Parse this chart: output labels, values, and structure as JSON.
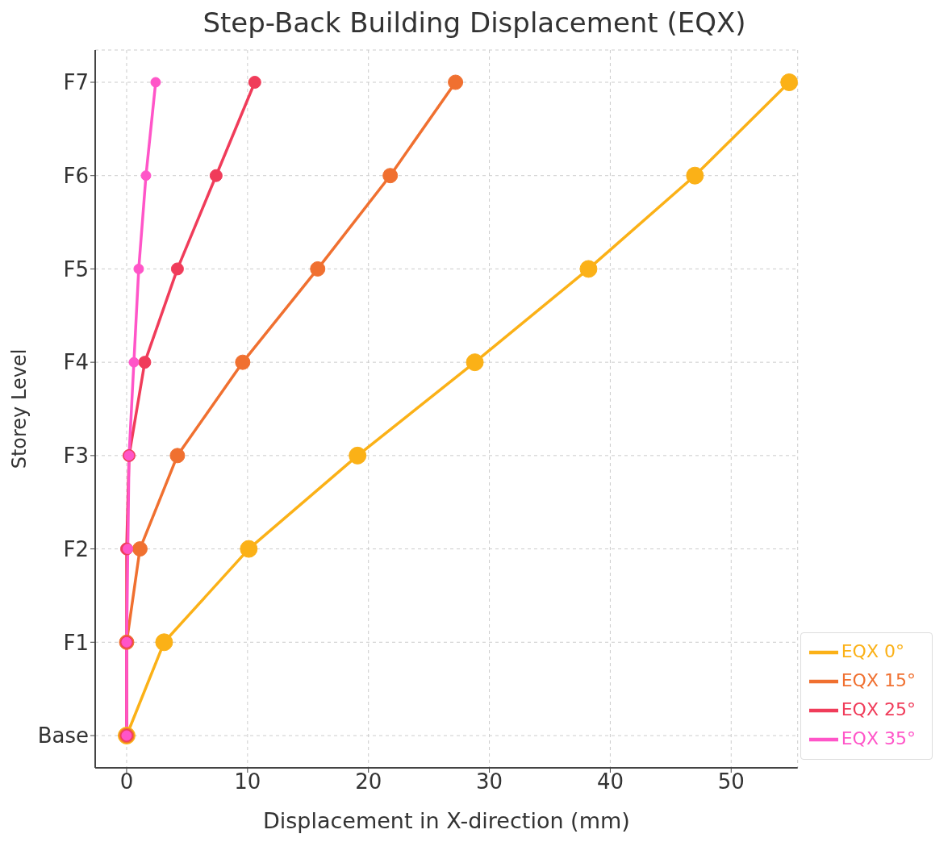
{
  "chart_data": {
    "type": "line",
    "title": "Step-Back Building Displacement (EQX)",
    "xlabel": "Displacement in X-direction (mm)",
    "ylabel": "Storey Level",
    "orientation": "horizontal",
    "categories": [
      "F7",
      "F6",
      "F5",
      "F4",
      "F3",
      "F2",
      "F1",
      "Base"
    ],
    "series": [
      {
        "name": "EQX 0°",
        "color": "#fbb117",
        "values": [
          54.8,
          47.0,
          38.2,
          28.8,
          19.1,
          10.1,
          3.1,
          0
        ]
      },
      {
        "name": "EQX 15°",
        "color": "#f07030",
        "values": [
          27.2,
          21.8,
          15.8,
          9.6,
          4.2,
          1.1,
          0,
          0
        ]
      },
      {
        "name": "EQX 25°",
        "color": "#f03c5a",
        "values": [
          10.6,
          7.4,
          4.2,
          1.5,
          0.2,
          0,
          0,
          0
        ]
      },
      {
        "name": "EQX 35°",
        "color": "#ff55c8",
        "values": [
          2.4,
          1.6,
          1.0,
          0.6,
          0.2,
          0.1,
          0,
          0
        ]
      }
    ],
    "xlim": [
      -2.6,
      55.5
    ],
    "xticks": [
      0,
      10,
      20,
      30,
      40,
      50
    ],
    "grid": true,
    "legend": "bottom right",
    "marker": "circle",
    "line_style": "solid"
  }
}
